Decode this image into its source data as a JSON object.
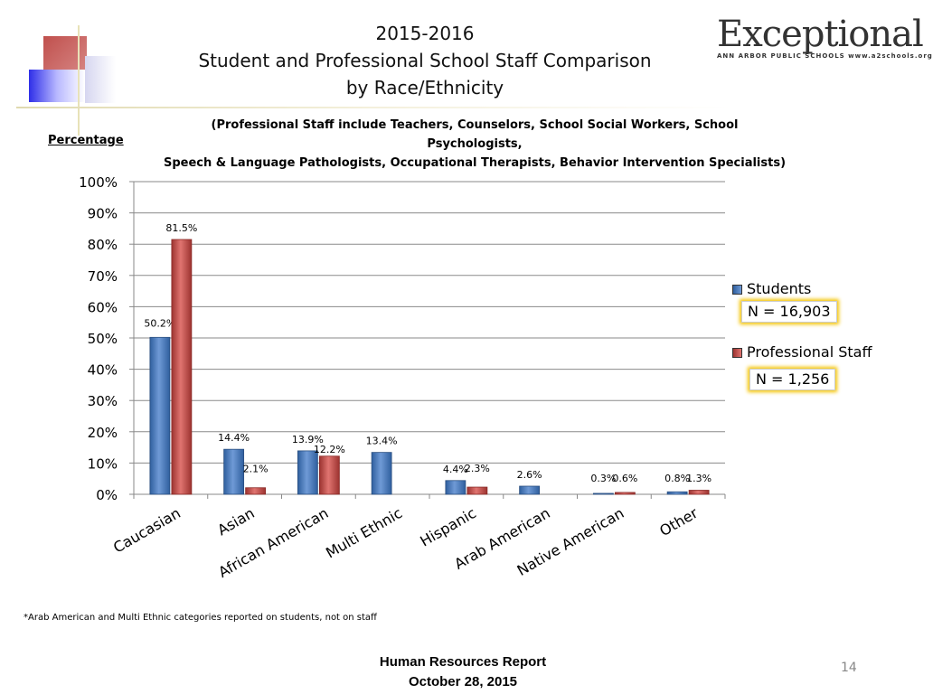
{
  "header": {
    "title_line1": "2015-2016",
    "title_line2": "Student and Professional School Staff  Comparison",
    "title_line3": "by Race/Ethnicity",
    "subtitle_line1": "(Professional Staff include Teachers, Counselors, School Social Workers, School Psychologists,",
    "subtitle_line2": "Speech & Language Pathologists, Occupational Therapists, Behavior Intervention Specialists)",
    "percentage_label": "Percentage"
  },
  "logo": {
    "main": "Exceptional",
    "sub": "ANN ARBOR PUBLIC SCHOOLS www.a2schools.org"
  },
  "legend": {
    "students_label": "Students",
    "students_n": "N = 16,903",
    "staff_label": "Professional Staff",
    "staff_n": "N = 1,256"
  },
  "chart_data": {
    "type": "bar",
    "categories": [
      "Caucasian",
      "Asian",
      "African American",
      "Multi Ethnic",
      "Hispanic",
      "Arab American",
      "Native American",
      "Other"
    ],
    "series": [
      {
        "name": "Students",
        "values": [
          50.2,
          14.4,
          13.9,
          13.4,
          4.4,
          2.6,
          0.3,
          0.8
        ],
        "labels": [
          "50.2%",
          "14.4%",
          "13.9%",
          "13.4%",
          "4.4%",
          "2.6%",
          "0.3%",
          "0.8%"
        ]
      },
      {
        "name": "Professional Staff",
        "values": [
          81.5,
          2.1,
          12.2,
          null,
          2.3,
          null,
          0.6,
          1.3
        ],
        "labels": [
          "81.5%",
          "2.1%",
          "12.2%",
          "",
          "2.3%",
          "",
          "0.6%",
          "1.3%"
        ]
      }
    ],
    "ylim": [
      0,
      100
    ],
    "yticks": [
      0,
      10,
      20,
      30,
      40,
      50,
      60,
      70,
      80,
      90,
      100
    ],
    "ytick_labels": [
      "0%",
      "10%",
      "20%",
      "30%",
      "40%",
      "50%",
      "60%",
      "70%",
      "80%",
      "90%",
      "100%"
    ],
    "grid": true,
    "legend_position": "right",
    "colors": {
      "Students": "#4a7ebb",
      "Professional Staff": "#c0504d"
    }
  },
  "footnote": "*Arab American and Multi Ethnic categories reported on students, not on staff",
  "footer": {
    "line1": "Human Resources  Report",
    "line2": "October 28, 2015"
  },
  "page_number": "14"
}
